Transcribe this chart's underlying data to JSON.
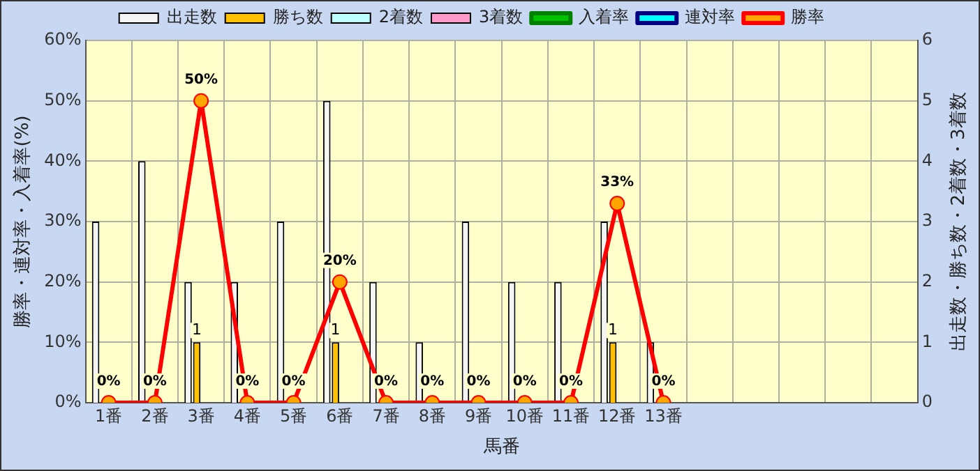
{
  "chart_data": {
    "type": "bar",
    "xlabel": "馬番",
    "ylabel": "勝率・連対率・入着率(%)",
    "y2label": "出走数・勝ち数・2着数・3着数",
    "categories": [
      "1番",
      "2番",
      "3番",
      "4番",
      "5番",
      "6番",
      "7番",
      "8番",
      "9番",
      "10番",
      "11番",
      "12番",
      "13番",
      null,
      null,
      null,
      null,
      null
    ],
    "series": [
      {
        "name": "出走数",
        "axis": "y2",
        "color": "#f4f4f4",
        "values": [
          3,
          4,
          2,
          2,
          3,
          5,
          2,
          1,
          3,
          2,
          2,
          3,
          1,
          null,
          null,
          null,
          null,
          null
        ]
      },
      {
        "name": "勝ち数",
        "axis": "y2",
        "color": "#ffc000",
        "values": [
          0,
          0,
          1,
          0,
          0,
          1,
          0,
          0,
          0,
          0,
          0,
          1,
          0,
          null,
          null,
          null,
          null,
          null
        ],
        "value_labels": [
          null,
          null,
          "1",
          null,
          null,
          "1",
          null,
          null,
          null,
          null,
          null,
          "1",
          null,
          null,
          null,
          null,
          null,
          null
        ]
      },
      {
        "name": "2着数",
        "axis": "y2",
        "color": "#c0ffff",
        "values": [
          0,
          0,
          0,
          0,
          0,
          0,
          0,
          0,
          0,
          0,
          0,
          0,
          0,
          null,
          null,
          null,
          null,
          null
        ]
      },
      {
        "name": "3着数",
        "axis": "y2",
        "color": "#ff99cc",
        "values": [
          0,
          0,
          0,
          0,
          0,
          0,
          0,
          0,
          0,
          0,
          0,
          0,
          0,
          null,
          null,
          null,
          null,
          null
        ]
      },
      {
        "name": "入着率",
        "type": "line",
        "marker": "triangle",
        "color": "#008000",
        "values": [
          null,
          null,
          null,
          null,
          null,
          null,
          null,
          null,
          null,
          null,
          null,
          null,
          null,
          null,
          null,
          null,
          null,
          null
        ]
      },
      {
        "name": "連対率",
        "type": "line",
        "marker": "diamond",
        "color": "#000080",
        "values": [
          null,
          null,
          null,
          null,
          null,
          null,
          null,
          null,
          null,
          null,
          null,
          null,
          null,
          null,
          null,
          null,
          null,
          null
        ]
      },
      {
        "name": "勝率",
        "type": "line",
        "marker": "circle",
        "color": "#ff0000",
        "values": [
          0,
          0,
          50,
          0,
          0,
          20,
          0,
          0,
          0,
          0,
          0,
          33,
          0,
          null,
          null,
          null,
          null,
          null
        ],
        "value_labels": [
          "0%",
          "0%",
          "50%",
          "0%",
          "0%",
          "20%",
          "0%",
          "0%",
          "0%",
          "0%",
          "0%",
          "33%",
          "0%",
          null,
          null,
          null,
          null,
          null
        ]
      }
    ],
    "ylim": [
      0,
      60
    ],
    "yticks": [
      {
        "value": 0,
        "label": "0%"
      },
      {
        "value": 10,
        "label": "10%"
      },
      {
        "value": 20,
        "label": "20%"
      },
      {
        "value": 30,
        "label": "30%"
      },
      {
        "value": 40,
        "label": "40%"
      },
      {
        "value": 50,
        "label": "50%"
      },
      {
        "value": 60,
        "label": "60%"
      }
    ],
    "y2lim": [
      0,
      6
    ],
    "y2ticks": [
      0,
      1,
      2,
      3,
      4,
      5,
      6
    ],
    "grid": true,
    "legend": "top"
  }
}
